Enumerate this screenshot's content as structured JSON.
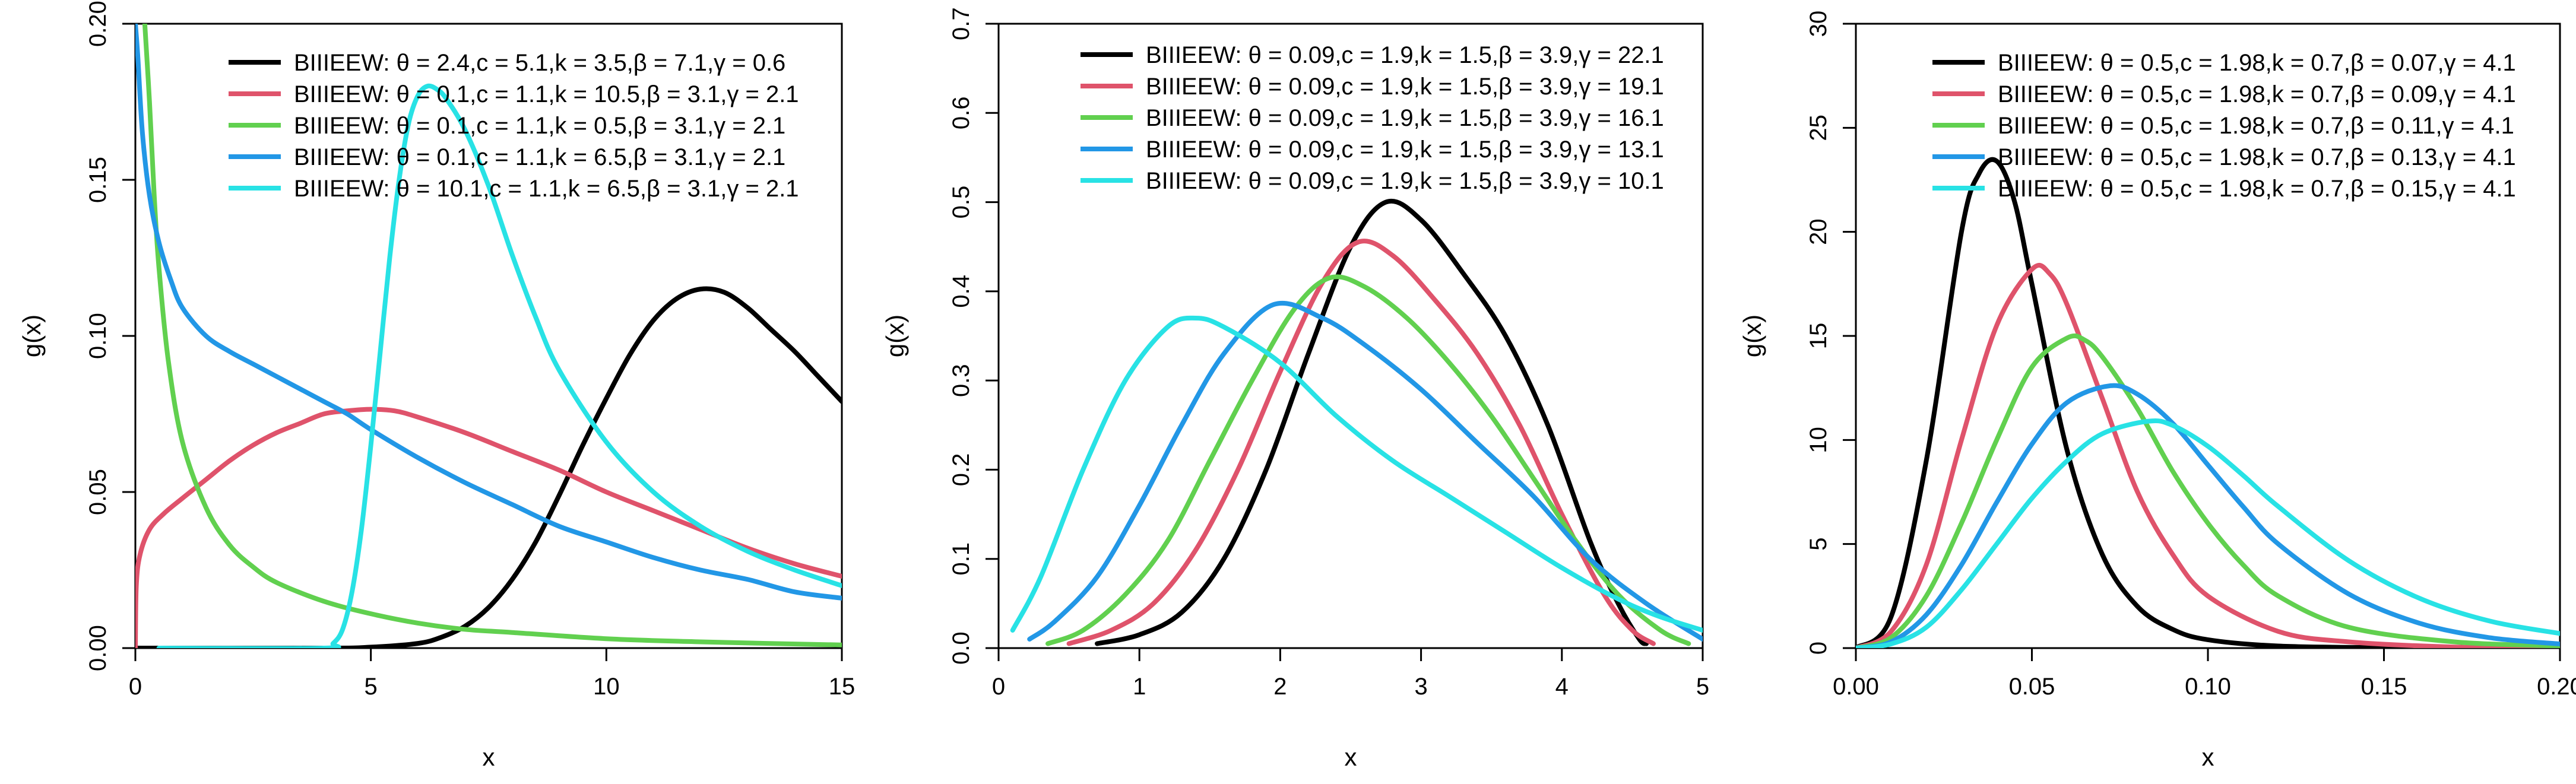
{
  "chart_data": [
    {
      "type": "line",
      "title": "",
      "xlabel": "x",
      "ylabel": "g(x)",
      "xlim": [
        0,
        15
      ],
      "ylim": [
        0,
        0.2
      ],
      "xticks": [
        "0",
        "5",
        "10",
        "15"
      ],
      "yticks": [
        "0.00",
        "0.05",
        "0.10",
        "0.15",
        "0.20"
      ],
      "grid": false,
      "legend_position": "top-right",
      "series": [
        {
          "name": "BIIIEEW: θ = 2.4,c = 5.1,k = 3.5,β = 7.1,γ = 0.6",
          "color": "#000000",
          "x": [
            0,
            4,
            5,
            6,
            6.5,
            7,
            7.5,
            8,
            8.5,
            9,
            9.5,
            10,
            10.5,
            11,
            11.5,
            12,
            12.5,
            13,
            13.5,
            14,
            14.5,
            15
          ],
          "y": [
            0,
            0,
            0.0003,
            0.0015,
            0.0035,
            0.007,
            0.013,
            0.022,
            0.034,
            0.049,
            0.065,
            0.08,
            0.094,
            0.105,
            0.112,
            0.115,
            0.114,
            0.109,
            0.102,
            0.095,
            0.087,
            0.079
          ]
        },
        {
          "name": "BIIIEEW: θ = 0.1,c = 1.1,k = 10.5,β = 3.1,γ = 2.1",
          "color": "#DF536B",
          "x": [
            0,
            0.02,
            0.1,
            0.3,
            0.6,
            1,
            1.5,
            2,
            2.5,
            3,
            3.5,
            4,
            4.5,
            5,
            5.5,
            6,
            7,
            8,
            9,
            10,
            11,
            12,
            13,
            14,
            15
          ],
          "y": [
            0,
            0.02,
            0.03,
            0.038,
            0.043,
            0.048,
            0.054,
            0.06,
            0.065,
            0.069,
            0.072,
            0.075,
            0.076,
            0.0765,
            0.076,
            0.074,
            0.069,
            0.063,
            0.057,
            0.05,
            0.044,
            0.038,
            0.032,
            0.027,
            0.023
          ]
        },
        {
          "name": "BIIIEEW: θ = 0.1,c = 1.1,k = 0.5,β = 3.1,γ = 2.1",
          "color": "#61D04F",
          "x": [
            0.2,
            0.3,
            0.4,
            0.5,
            0.7,
            1,
            1.5,
            2,
            2.5,
            3,
            4,
            5,
            6,
            7,
            8,
            10,
            12,
            15
          ],
          "y": [
            0.2,
            0.175,
            0.145,
            0.122,
            0.092,
            0.066,
            0.045,
            0.033,
            0.026,
            0.021,
            0.015,
            0.011,
            0.008,
            0.006,
            0.005,
            0.003,
            0.002,
            0.001
          ]
        },
        {
          "name": "BIIIEEW: θ = 0.1,c = 1.1,k = 6.5,β = 3.1,γ = 2.1",
          "color": "#2297E6",
          "x": [
            0,
            0.05,
            0.15,
            0.3,
            0.5,
            0.75,
            1,
            1.5,
            2,
            2.5,
            3,
            3.5,
            4,
            4.5,
            5,
            6,
            7,
            8,
            9,
            10,
            11,
            12,
            13,
            14,
            15
          ],
          "y": [
            0.2,
            0.19,
            0.165,
            0.145,
            0.13,
            0.118,
            0.109,
            0.1,
            0.095,
            0.091,
            0.087,
            0.083,
            0.079,
            0.075,
            0.07,
            0.061,
            0.053,
            0.046,
            0.039,
            0.034,
            0.029,
            0.025,
            0.022,
            0.018,
            0.016
          ]
        },
        {
          "name": "BIIIEEW: θ = 10.1,c = 1.1,k = 6.5,β = 3.1,γ = 2.1",
          "color": "#28E2E5",
          "x": [
            0.5,
            4,
            4.2,
            4.4,
            4.6,
            4.8,
            5,
            5.2,
            5.4,
            5.6,
            5.8,
            6,
            6.2,
            6.4,
            6.6,
            7,
            7.5,
            8,
            8.5,
            9,
            10,
            11,
            12,
            13,
            14,
            15
          ],
          "y": [
            0,
            0,
            0.0015,
            0.006,
            0.018,
            0.038,
            0.065,
            0.095,
            0.125,
            0.15,
            0.168,
            0.177,
            0.18,
            0.179,
            0.176,
            0.166,
            0.148,
            0.126,
            0.106,
            0.089,
            0.066,
            0.05,
            0.039,
            0.031,
            0.025,
            0.02
          ]
        }
      ]
    },
    {
      "type": "line",
      "title": "",
      "xlabel": "x",
      "ylabel": "g(x)",
      "xlim": [
        0,
        5
      ],
      "ylim": [
        0,
        0.7
      ],
      "xticks": [
        "0",
        "1",
        "2",
        "3",
        "4",
        "5"
      ],
      "yticks": [
        "0.0",
        "0.1",
        "0.2",
        "0.3",
        "0.4",
        "0.5",
        "0.6",
        "0.7"
      ],
      "grid": false,
      "legend_position": "top-right",
      "series": [
        {
          "name": "BIIIEEW: θ = 0.09,c = 1.9,k = 1.5,β = 3.9,γ = 22.1",
          "color": "#000000",
          "x": [
            0.7,
            1,
            1.3,
            1.6,
            1.9,
            2.2,
            2.5,
            2.75,
            3,
            3.3,
            3.6,
            3.9,
            4.2,
            4.4,
            4.55,
            4.6
          ],
          "y": [
            0.005,
            0.015,
            0.04,
            0.1,
            0.2,
            0.33,
            0.45,
            0.5,
            0.48,
            0.42,
            0.35,
            0.25,
            0.12,
            0.05,
            0.01,
            0.005
          ]
        },
        {
          "name": "BIIIEEW: θ = 0.09,c = 1.9,k = 1.5,β = 3.9,γ = 19.1",
          "color": "#DF536B",
          "x": [
            0.5,
            0.8,
            1.1,
            1.4,
            1.7,
            2,
            2.3,
            2.55,
            2.8,
            3.1,
            3.4,
            3.7,
            4,
            4.3,
            4.5,
            4.65
          ],
          "y": [
            0.005,
            0.02,
            0.05,
            0.11,
            0.2,
            0.31,
            0.41,
            0.455,
            0.44,
            0.39,
            0.33,
            0.25,
            0.15,
            0.06,
            0.02,
            0.005
          ]
        },
        {
          "name": "BIIIEEW: θ = 0.09,c = 1.9,k = 1.5,β = 3.9,γ = 16.1",
          "color": "#61D04F",
          "x": [
            0.35,
            0.6,
            0.9,
            1.2,
            1.5,
            1.8,
            2.1,
            2.35,
            2.6,
            2.9,
            3.2,
            3.5,
            3.8,
            4.1,
            4.4,
            4.7,
            4.9
          ],
          "y": [
            0.005,
            0.02,
            0.06,
            0.12,
            0.21,
            0.3,
            0.38,
            0.415,
            0.405,
            0.37,
            0.32,
            0.26,
            0.19,
            0.12,
            0.06,
            0.02,
            0.005
          ]
        },
        {
          "name": "BIIIEEW: θ = 0.09,c = 1.9,k = 1.5,β = 3.9,γ = 13.1",
          "color": "#2297E6",
          "x": [
            0.22,
            0.4,
            0.7,
            1,
            1.3,
            1.6,
            1.95,
            2.3,
            2.6,
            3,
            3.4,
            3.8,
            4.2,
            4.6,
            5
          ],
          "y": [
            0.01,
            0.03,
            0.08,
            0.16,
            0.25,
            0.33,
            0.385,
            0.37,
            0.34,
            0.29,
            0.23,
            0.17,
            0.1,
            0.05,
            0.01
          ]
        },
        {
          "name": "BIIIEEW: θ = 0.09,c = 1.9,k = 1.5,β = 3.9,γ = 10.1",
          "color": "#28E2E5",
          "x": [
            0.1,
            0.3,
            0.6,
            0.9,
            1.2,
            1.4,
            1.6,
            2,
            2.4,
            2.8,
            3.2,
            3.6,
            4,
            4.4,
            4.7,
            5
          ],
          "y": [
            0.02,
            0.08,
            0.2,
            0.3,
            0.36,
            0.37,
            0.36,
            0.32,
            0.26,
            0.21,
            0.17,
            0.13,
            0.09,
            0.055,
            0.035,
            0.02
          ]
        }
      ]
    },
    {
      "type": "line",
      "title": "",
      "xlabel": "x",
      "ylabel": "g(x)",
      "xlim": [
        0,
        0.2
      ],
      "ylim": [
        0,
        30
      ],
      "xticks": [
        "0.00",
        "0.05",
        "0.10",
        "0.15",
        "0.20"
      ],
      "yticks": [
        "0",
        "5",
        "10",
        "15",
        "20",
        "25",
        "30"
      ],
      "grid": false,
      "legend_position": "top-right",
      "series": [
        {
          "name": "BIIIEEW: θ = 0.5,c = 1.98,k = 0.7,β = 0.07,γ = 4.1",
          "color": "#000000",
          "x": [
            0,
            0.01,
            0.02,
            0.03,
            0.035,
            0.04,
            0.045,
            0.05,
            0.06,
            0.07,
            0.08,
            0.09,
            0.1,
            0.12,
            0.15,
            0.17
          ],
          "y": [
            0,
            1.5,
            9,
            20,
            22.8,
            23.4,
            21.5,
            17.5,
            9.5,
            4.5,
            2,
            0.9,
            0.4,
            0.1,
            0.02,
            0
          ]
        },
        {
          "name": "BIIIEEW: θ = 0.5,c = 1.98,k = 0.7,β = 0.09,γ = 4.1",
          "color": "#DF536B",
          "x": [
            0,
            0.01,
            0.02,
            0.03,
            0.04,
            0.05,
            0.055,
            0.06,
            0.07,
            0.08,
            0.09,
            0.1,
            0.12,
            0.14,
            0.17,
            0.2
          ],
          "y": [
            0,
            0.8,
            4,
            10,
            15.5,
            18.2,
            18,
            16.5,
            12,
            7.5,
            4.5,
            2.5,
            0.8,
            0.3,
            0.05,
            0
          ]
        },
        {
          "name": "BIIIEEW: θ = 0.5,c = 1.98,k = 0.7,β = 0.11,γ = 4.1",
          "color": "#61D04F",
          "x": [
            0,
            0.01,
            0.02,
            0.03,
            0.04,
            0.05,
            0.06,
            0.065,
            0.07,
            0.08,
            0.09,
            0.1,
            0.11,
            0.12,
            0.14,
            0.17,
            0.2
          ],
          "y": [
            0,
            0.5,
            2.5,
            6,
            10,
            13.5,
            14.9,
            14.8,
            14,
            11.5,
            8.5,
            6,
            4,
            2.5,
            1,
            0.3,
            0.1
          ]
        },
        {
          "name": "BIIIEEW: θ = 0.5,c = 1.98,k = 0.7,β = 0.13,γ = 4.1",
          "color": "#2297E6",
          "x": [
            0,
            0.01,
            0.02,
            0.03,
            0.04,
            0.05,
            0.06,
            0.072,
            0.08,
            0.09,
            0.1,
            0.11,
            0.12,
            0.14,
            0.16,
            0.18,
            0.2
          ],
          "y": [
            0,
            0.3,
            1.6,
            4,
            7,
            9.8,
            11.8,
            12.6,
            12.2,
            10.8,
            8.8,
            6.8,
            5,
            2.6,
            1.2,
            0.5,
            0.2
          ]
        },
        {
          "name": "BIIIEEW: θ = 0.5,c = 1.98,k = 0.7,β = 0.15,γ = 4.1",
          "color": "#28E2E5",
          "x": [
            0,
            0.01,
            0.02,
            0.03,
            0.04,
            0.05,
            0.06,
            0.07,
            0.083,
            0.09,
            0.1,
            0.11,
            0.12,
            0.14,
            0.16,
            0.18,
            0.2
          ],
          "y": [
            0,
            0.2,
            1,
            2.8,
            5,
            7.2,
            9,
            10.3,
            10.9,
            10.7,
            9.7,
            8.3,
            6.8,
            4.2,
            2.4,
            1.3,
            0.7
          ]
        }
      ]
    }
  ]
}
